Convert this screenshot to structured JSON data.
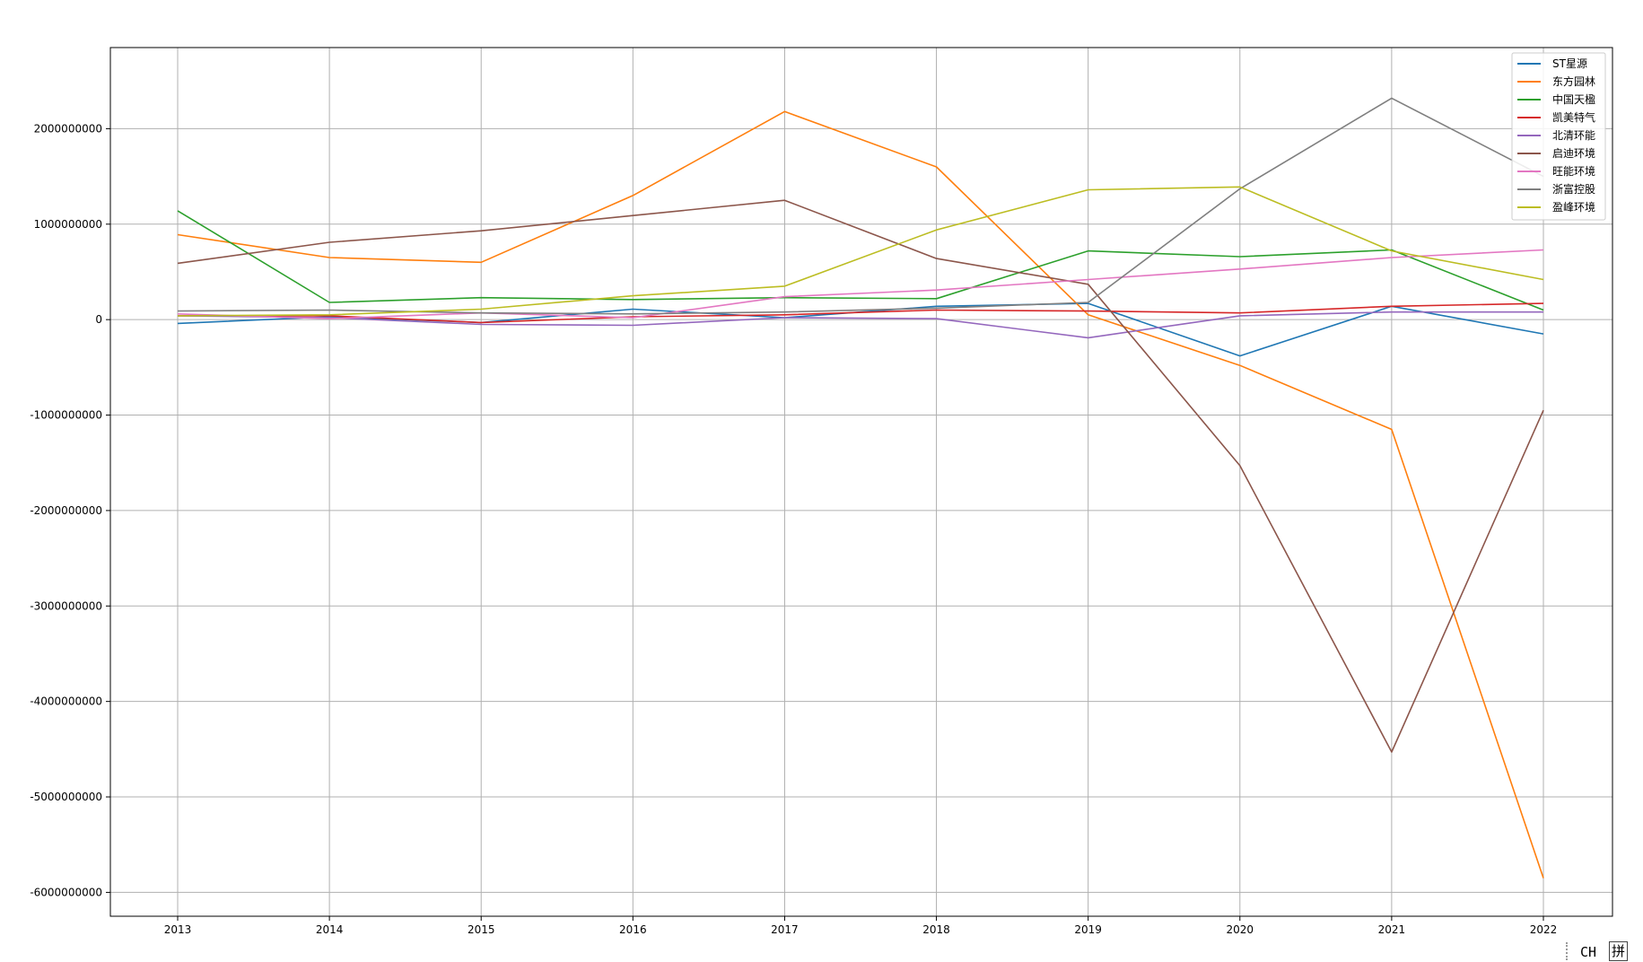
{
  "chart_data": {
    "type": "line",
    "x": [
      "2013",
      "2014",
      "2015",
      "2016",
      "2017",
      "2018",
      "2019",
      "2020",
      "2021",
      "2022"
    ],
    "ylim": [
      -6250000000,
      2850000000
    ],
    "yticks": [
      2000000000,
      1000000000,
      0,
      -1000000000,
      -2000000000,
      -3000000000,
      -4000000000,
      -5000000000,
      -6000000000
    ],
    "ytick_labels": [
      "2000000000",
      "1000000000",
      "0",
      "-1000000000",
      "-2000000000",
      "-3000000000",
      "-4000000000",
      "-5000000000",
      "-6000000000"
    ],
    "grid": true,
    "legend_position": "top-right",
    "series": [
      {
        "name": "ST星源",
        "color": "#1f77b4",
        "values": [
          -40000000,
          30000000,
          -30000000,
          110000000,
          20000000,
          140000000,
          170000000,
          -380000000,
          140000000,
          -150000000
        ]
      },
      {
        "name": "东方园林",
        "color": "#ff7f0e",
        "values": [
          890000000,
          650000000,
          600000000,
          1300000000,
          2180000000,
          1600000000,
          50000000,
          -480000000,
          -1150000000,
          -5850000000
        ]
      },
      {
        "name": "中国天楹",
        "color": "#2ca02c",
        "values": [
          1140000000,
          180000000,
          230000000,
          210000000,
          230000000,
          220000000,
          720000000,
          660000000,
          730000000,
          100000000
        ]
      },
      {
        "name": "凯美特气",
        "color": "#d62728",
        "values": [
          40000000,
          40000000,
          -30000000,
          30000000,
          50000000,
          100000000,
          90000000,
          70000000,
          140000000,
          170000000
        ]
      },
      {
        "name": "北清环能",
        "color": "#9467bd",
        "values": [
          40000000,
          20000000,
          -50000000,
          -60000000,
          20000000,
          10000000,
          -190000000,
          40000000,
          80000000,
          80000000
        ]
      },
      {
        "name": "启迪环境",
        "color": "#8c564b",
        "values": [
          590000000,
          810000000,
          930000000,
          1090000000,
          1250000000,
          640000000,
          370000000,
          -1530000000,
          -4530000000,
          -950000000
        ]
      },
      {
        "name": "旺能环境",
        "color": "#e377c2",
        "values": [
          60000000,
          10000000,
          70000000,
          20000000,
          240000000,
          310000000,
          420000000,
          530000000,
          650000000,
          730000000
        ]
      },
      {
        "name": "浙富控股",
        "color": "#7f7f7f",
        "values": [
          90000000,
          100000000,
          70000000,
          60000000,
          80000000,
          120000000,
          180000000,
          1370000000,
          2320000000,
          1500000000
        ]
      },
      {
        "name": "盈峰环境",
        "color": "#bcbd22",
        "values": [
          40000000,
          50000000,
          110000000,
          250000000,
          350000000,
          940000000,
          1360000000,
          1390000000,
          720000000,
          420000000
        ]
      }
    ]
  },
  "ime": {
    "mode": "CH",
    "input": "拼"
  }
}
